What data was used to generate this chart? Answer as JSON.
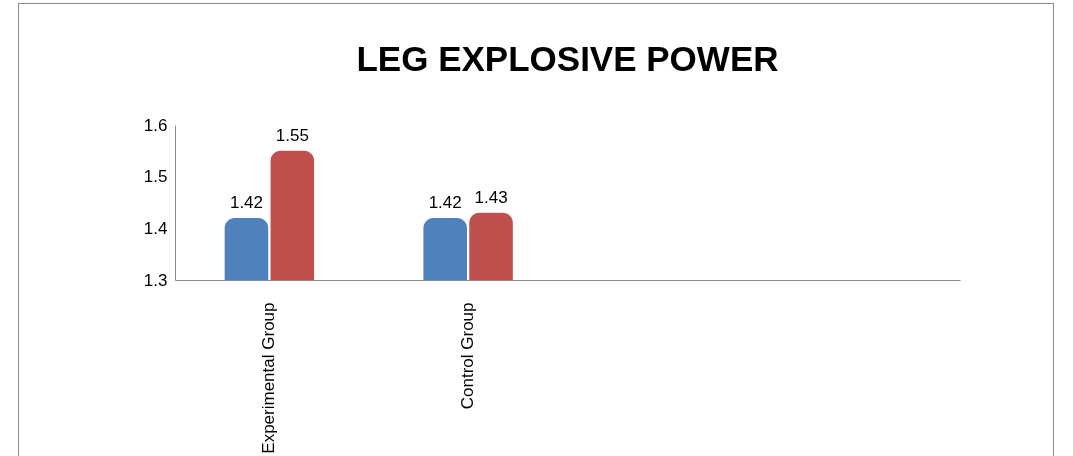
{
  "chart_data": {
    "type": "bar",
    "title": "LEG EXPLOSIVE POWER",
    "categories": [
      "Experimental Group",
      "Control Group",
      null,
      null
    ],
    "series": [
      {
        "color": "#4f81bd",
        "values": [
          1.42,
          1.42,
          null,
          null
        ]
      },
      {
        "color": "#c0504d",
        "values": [
          1.55,
          1.43,
          null,
          null
        ]
      }
    ],
    "ylim": [
      1.3,
      1.6
    ],
    "yticks": [
      1.3,
      1.4,
      1.5,
      1.6
    ],
    "grid": false,
    "legend": false,
    "data_labels": true
  }
}
